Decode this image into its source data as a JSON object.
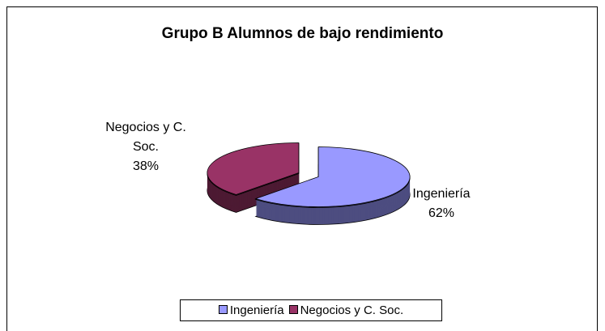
{
  "chart_data": {
    "type": "pie",
    "title": "Grupo B Alumnos de bajo rendimiento",
    "categories": [
      "Ingeniería",
      "Negocios y C. Soc."
    ],
    "values": [
      62,
      38
    ],
    "value_labels": [
      "62%",
      "38%"
    ],
    "colors": [
      "#9999ff",
      "#993366"
    ],
    "legend": "bottom"
  }
}
